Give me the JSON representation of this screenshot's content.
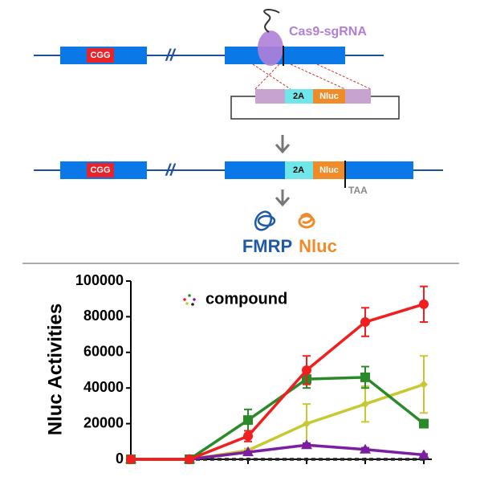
{
  "diagram": {
    "cgg_top": "CGG",
    "cas9": "Cas9-sgRNA",
    "cassette_2a": "2A",
    "cassette_nluc": "Nluc",
    "cgg_bottom": "CGG",
    "edited_2a": "2A",
    "edited_nluc": "Nluc",
    "stop": "TAA",
    "protein_fmrp": "FMRP",
    "protein_nluc": "Nluc"
  },
  "chart_data": {
    "type": "line",
    "y_label": "Nluc Activities",
    "annotation": "compound",
    "categories": [
      null,
      null,
      null,
      null,
      null,
      null
    ],
    "ylim": [
      0,
      100000
    ],
    "yticks": [
      0,
      20000,
      40000,
      60000,
      80000,
      100000
    ],
    "series": [
      {
        "color": "#222222",
        "marker": "none",
        "dash": true,
        "values": [
          0,
          0,
          0,
          0,
          0,
          0
        ],
        "errors": [
          0,
          0,
          0,
          0,
          0,
          0
        ]
      },
      {
        "color": "#c8c832",
        "marker": "diamond",
        "values": [
          0,
          0,
          5000,
          20000,
          31000,
          42000
        ],
        "errors": [
          0,
          0,
          1000,
          11000,
          10000,
          16000
        ]
      },
      {
        "color": "#7a1fa2",
        "marker": "triangle",
        "values": [
          0,
          0,
          4000,
          8000,
          5500,
          2500
        ],
        "errors": [
          0,
          0,
          500,
          1000,
          1000,
          500
        ]
      },
      {
        "color": "#2a8a2a",
        "marker": "square",
        "values": [
          0,
          0,
          22000,
          45000,
          46000,
          20000
        ],
        "errors": [
          0,
          0,
          6000,
          5000,
          6000,
          2000
        ]
      },
      {
        "color": "#f01e1e",
        "marker": "circle",
        "values": [
          0,
          0,
          13000,
          50000,
          77000,
          87000
        ],
        "errors": [
          0,
          0,
          3000,
          8000,
          8000,
          10000
        ]
      }
    ]
  }
}
